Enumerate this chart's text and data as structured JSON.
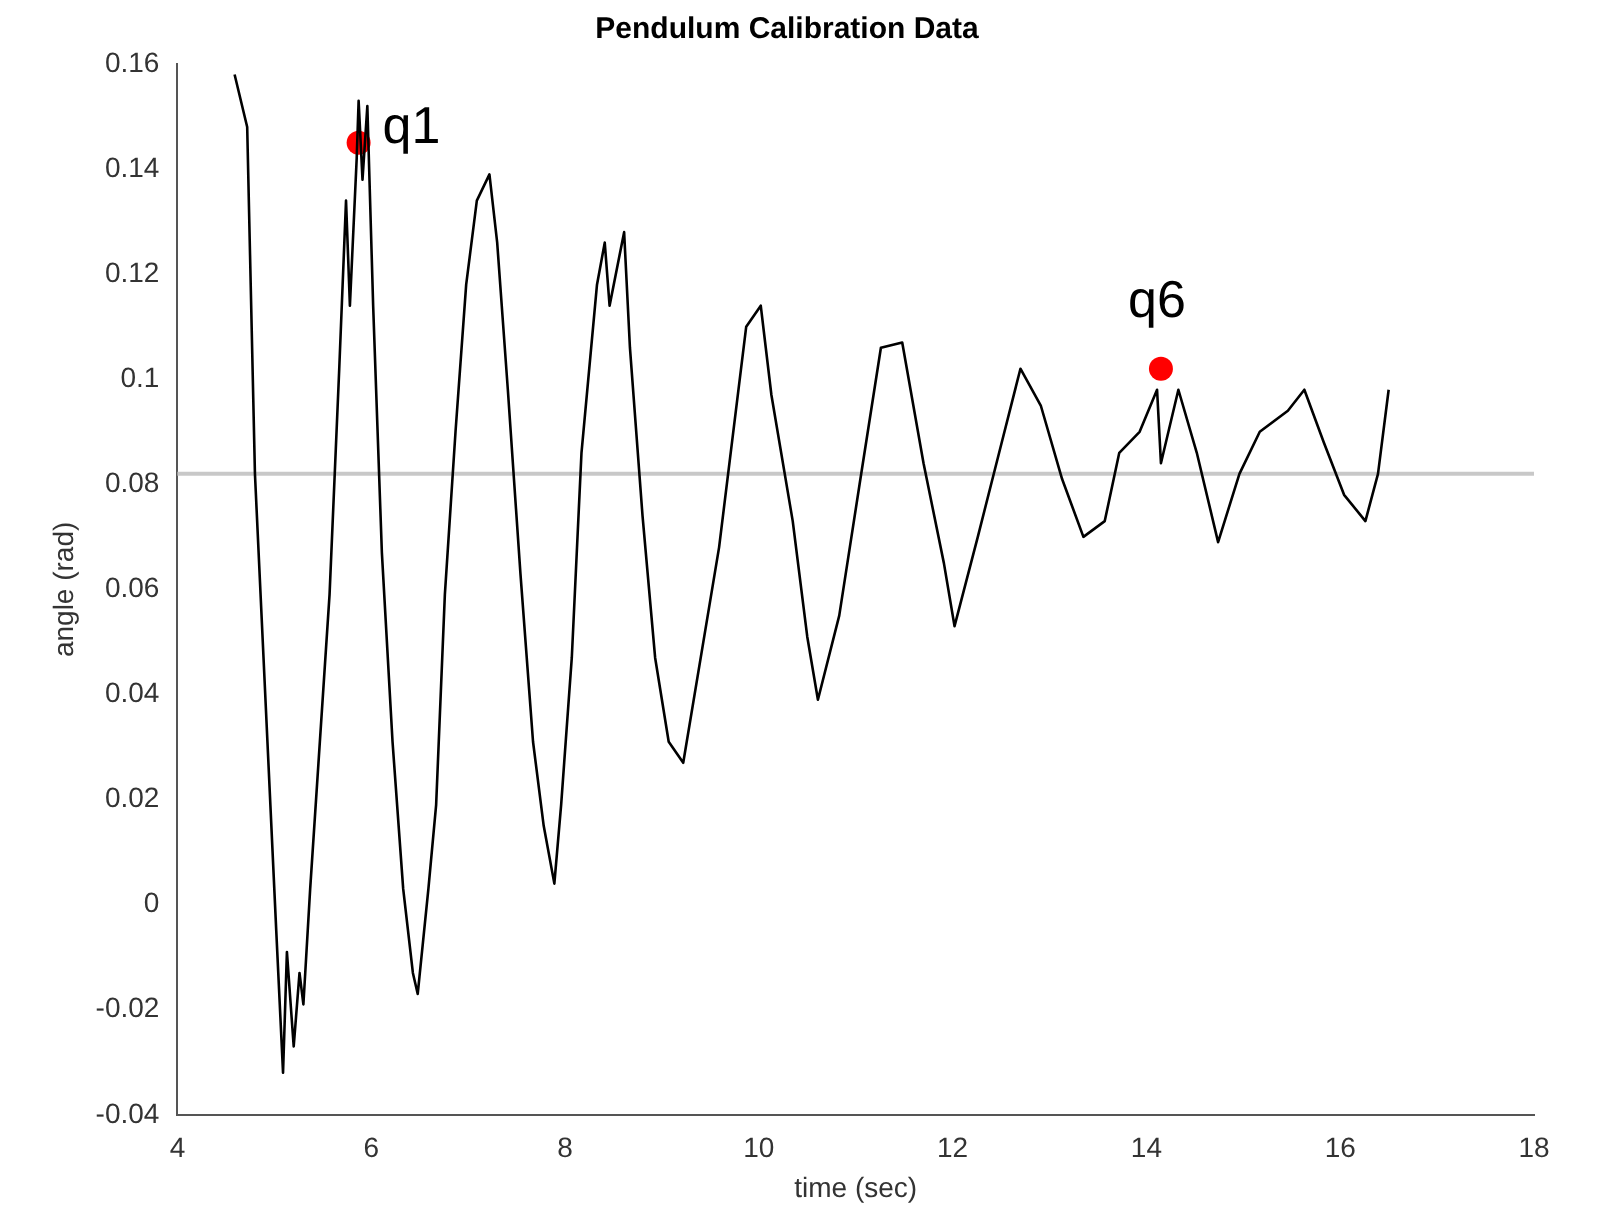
{
  "chart_data": {
    "type": "line",
    "title": "Pendulum Calibration Data",
    "xlabel": "time (sec)",
    "ylabel": "angle (rad)",
    "xlim": [
      4,
      18
    ],
    "xticks": [
      4,
      6,
      8,
      10,
      12,
      14,
      16,
      18
    ],
    "ylim": [
      -0.04,
      0.16
    ],
    "yticks": [
      -0.04,
      -0.02,
      0,
      0.02,
      0.04,
      0.06,
      0.08,
      0.1,
      0.12,
      0.14,
      0.16
    ],
    "grid": false,
    "legend": false,
    "series": [
      {
        "type": "line",
        "color": "#000000",
        "marker": "none",
        "line_style": "solid",
        "x": [
          4.59,
          4.72,
          4.8,
          5.02,
          5.09,
          5.13,
          5.2,
          5.26,
          5.3,
          5.37,
          5.57,
          5.67,
          5.74,
          5.78,
          5.85,
          5.87,
          5.91,
          5.96,
          6.02,
          6.11,
          6.22,
          6.33,
          6.43,
          6.48,
          6.59,
          6.67,
          6.76,
          6.87,
          6.98,
          7.09,
          7.22,
          7.3,
          7.41,
          7.54,
          7.67,
          7.78,
          7.89,
          7.96,
          8.07,
          8.17,
          8.33,
          8.41,
          8.46,
          8.61,
          8.67,
          8.8,
          8.93,
          9.07,
          9.22,
          9.59,
          9.87,
          10.02,
          10.13,
          10.35,
          10.5,
          10.61,
          10.83,
          11.04,
          11.26,
          11.48,
          11.7,
          11.91,
          12.02,
          12.26,
          12.48,
          12.7,
          12.91,
          13.13,
          13.35,
          13.57,
          13.72,
          13.93,
          14.11,
          14.15,
          14.33,
          14.52,
          14.74,
          14.96,
          15.17,
          15.46,
          15.63,
          15.83,
          16.04,
          16.26,
          16.39,
          16.5
        ],
        "values": [
          0.158,
          0.148,
          0.082,
          -0.005,
          -0.032,
          -0.009,
          -0.027,
          -0.013,
          -0.019,
          0.003,
          0.059,
          0.102,
          0.134,
          0.114,
          0.142,
          0.153,
          0.138,
          0.152,
          0.114,
          0.067,
          0.031,
          0.003,
          -0.013,
          -0.017,
          0.003,
          0.019,
          0.059,
          0.09,
          0.118,
          0.134,
          0.139,
          0.126,
          0.098,
          0.063,
          0.031,
          0.015,
          0.004,
          0.019,
          0.047,
          0.086,
          0.118,
          0.126,
          0.114,
          0.128,
          0.106,
          0.074,
          0.047,
          0.031,
          0.027,
          0.068,
          0.11,
          0.114,
          0.097,
          0.073,
          0.051,
          0.039,
          0.055,
          0.08,
          0.106,
          0.107,
          0.084,
          0.065,
          0.053,
          0.07,
          0.086,
          0.102,
          0.095,
          0.081,
          0.07,
          0.073,
          0.086,
          0.09,
          0.098,
          0.084,
          0.098,
          0.086,
          0.069,
          0.082,
          0.09,
          0.094,
          0.098,
          0.088,
          0.078,
          0.073,
          0.082,
          0.098
        ]
      },
      {
        "type": "scatter",
        "color": "#ff0000",
        "marker": "circle",
        "x": [
          5.87,
          14.15
        ],
        "values": [
          0.145,
          0.102
        ]
      }
    ],
    "ref_lines": [
      {
        "axis": "y",
        "value": 0.082,
        "color": "#c8c8c8"
      }
    ],
    "annotations": [
      {
        "text": "q1",
        "x": 5.87,
        "y": 0.145
      },
      {
        "text": "q6",
        "x": 14.15,
        "y": 0.102
      }
    ]
  }
}
